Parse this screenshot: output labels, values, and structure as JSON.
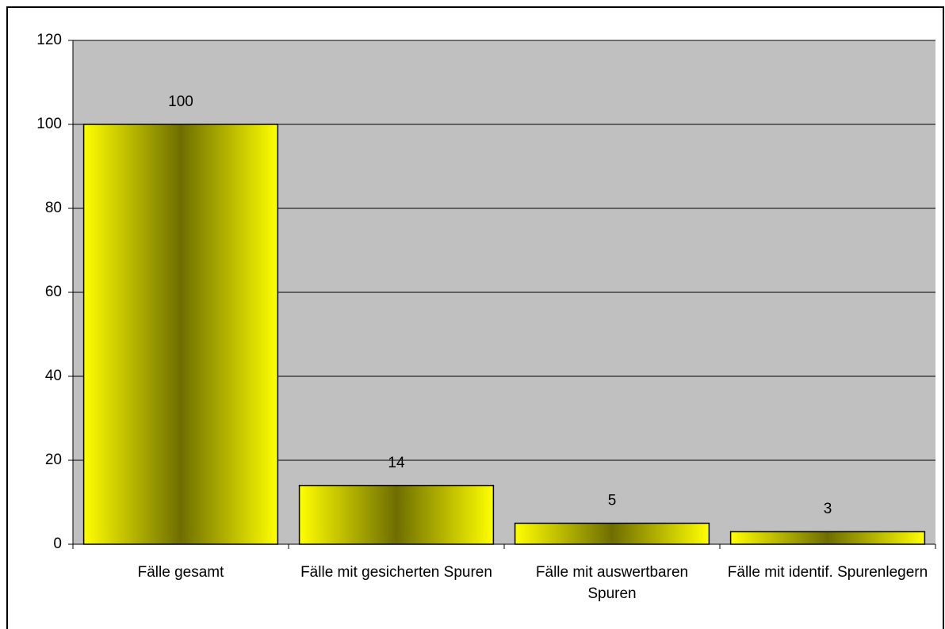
{
  "chart_data": {
    "type": "bar",
    "categories": [
      "Fälle gesamt",
      "Fälle mit gesicherten Spuren",
      "Fälle mit auswertbaren Spuren",
      "Fälle mit identif. Spurenlegern"
    ],
    "values": [
      100,
      14,
      5,
      3
    ],
    "color": "#ffff00",
    "ylim": [
      0,
      120
    ],
    "yticks": [
      0,
      20,
      40,
      60,
      80,
      100,
      120
    ],
    "grid": true
  }
}
